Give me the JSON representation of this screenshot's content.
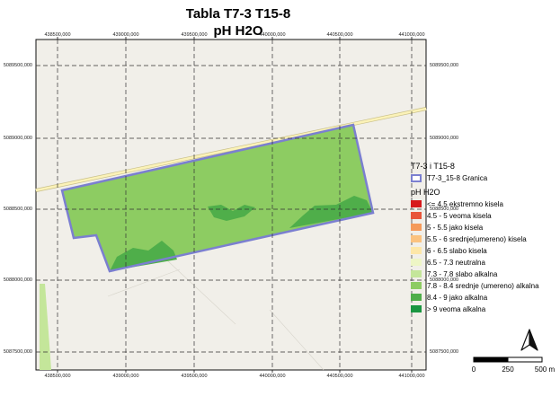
{
  "title": {
    "line1": "Tabla T7-3 T15-8",
    "line2": "pH H2O"
  },
  "coordinates": {
    "x_ticks": [
      "438500,000",
      "439000,000",
      "439500,000",
      "440000,000",
      "440500,000",
      "441000,000"
    ],
    "y_ticks": [
      "5089500,000",
      "5089000,000",
      "5088500,000",
      "5088000,000",
      "5087500,000"
    ]
  },
  "legend": {
    "group_title": "T7-3 i T15-8",
    "boundary_label": "T7-3_15-8 Granica",
    "boundary_color": "#7b7fd0",
    "class_title": "pH H2O",
    "classes": [
      {
        "label": "<= 4.5  ekstremno kisela",
        "color": "#d7191c"
      },
      {
        "label": "4.5 - 5  veoma kisela",
        "color": "#e8553a"
      },
      {
        "label": "5 - 5.5  jako kisela",
        "color": "#f59a5a"
      },
      {
        "label": "5.5 - 6  srednje(umereno) kisela",
        "color": "#fbc27f"
      },
      {
        "label": "6 - 6.5  slabo kisela",
        "color": "#fde7a8"
      },
      {
        "label": "6.5 - 7.3  neutralna",
        "color": "#eef6c6"
      },
      {
        "label": "7.3 - 7.8  slabo alkalna",
        "color": "#c4e69a"
      },
      {
        "label": "7.8 - 8.4  srednje (umereno) alkalna",
        "color": "#8dcc62"
      },
      {
        "label": "8.4 - 9  jako alkalna",
        "color": "#4fae4a"
      },
      {
        "label": "> 9  veoma alkalna",
        "color": "#1a9641"
      }
    ]
  },
  "scale": {
    "labels": [
      "0",
      "250",
      "500 m"
    ]
  },
  "colors": {
    "basemap": "#f1efe9",
    "parcel_fill": "#8dcc62",
    "parcel_dark": "#4fae4a",
    "road": "#fbf2b8",
    "road_edge": "#c9c08a",
    "grid": "#333333"
  }
}
